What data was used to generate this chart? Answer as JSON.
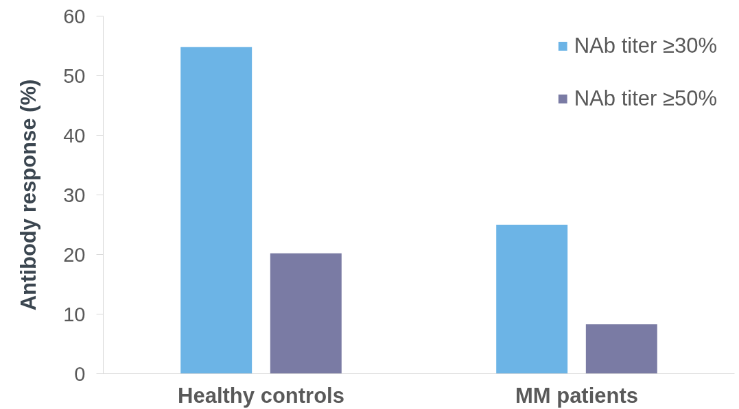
{
  "chart_data": {
    "type": "bar",
    "ylabel": "Antibody response (%)",
    "categories": [
      "Healthy controls",
      "MM patients"
    ],
    "series": [
      {
        "name": "NAb titer ≥30%",
        "color": "#6cb4e6",
        "values": [
          54.8,
          25.0
        ]
      },
      {
        "name": "NAb titer ≥50%",
        "color": "#7a7ba4",
        "values": [
          20.2,
          8.3
        ]
      }
    ],
    "ylim": [
      0,
      60
    ],
    "yticks": [
      0,
      10,
      20,
      30,
      40,
      50,
      60
    ],
    "grid": false,
    "legend": "top right"
  }
}
